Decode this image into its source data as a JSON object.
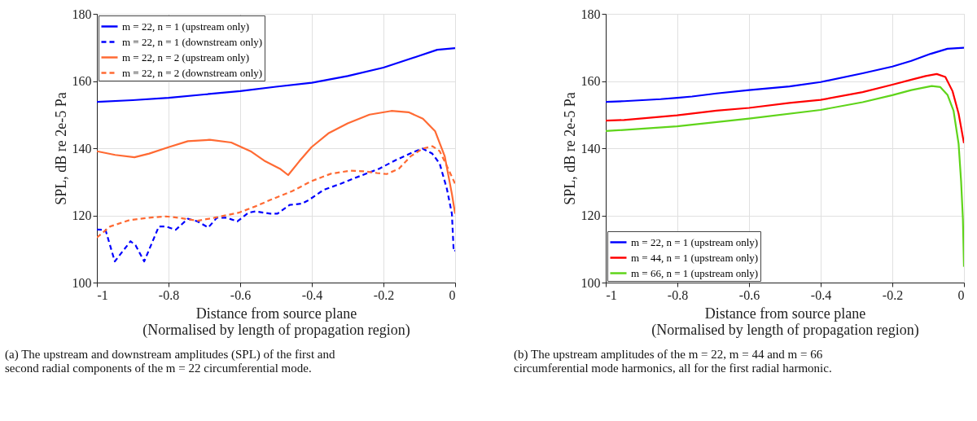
{
  "chart_data": [
    {
      "type": "line",
      "xlabel": "Distance from source plane\n(Normalised by length of propagation region)",
      "ylabel": "SPL, dB re 2e-5 Pa",
      "xlim": [
        -1,
        0
      ],
      "ylim": [
        100,
        180
      ],
      "xticks": [
        -1,
        -0.8,
        -0.6,
        -0.4,
        -0.2,
        0
      ],
      "yticks": [
        100,
        120,
        140,
        160,
        180
      ],
      "grid": true,
      "legend": "top left",
      "annotations": [
        "(a)  The upstream and downstream amplitudes (SPL) of the first and second radial components of the m = 22 circumferential mode."
      ],
      "series": [
        {
          "name": "m = 22, n = 1 (upstream only)",
          "color": "#0000ff",
          "line_style": "solid",
          "x": [
            -1,
            -0.9,
            -0.8,
            -0.7,
            -0.6,
            -0.5,
            -0.4,
            -0.3,
            -0.2,
            -0.1,
            -0.05,
            0
          ],
          "values": [
            153.8,
            154.3,
            155,
            156,
            157,
            158.3,
            159.5,
            161.5,
            164,
            167.5,
            169.3,
            169.8
          ]
        },
        {
          "name": "m = 22, n = 1 (downstream only)",
          "color": "#0000ff",
          "line_style": "dashed",
          "x": [
            -1,
            -0.976,
            -0.95,
            -0.906,
            -0.892,
            -0.868,
            -0.827,
            -0.807,
            -0.78,
            -0.746,
            -0.719,
            -0.689,
            -0.665,
            -0.638,
            -0.608,
            -0.577,
            -0.557,
            -0.516,
            -0.496,
            -0.462,
            -0.428,
            -0.408,
            -0.367,
            -0.32,
            -0.266,
            -0.212,
            -0.165,
            -0.118,
            -0.091,
            -0.064,
            -0.043,
            -0.023,
            -0.009,
            -0.004,
            0
          ],
          "values": [
            115.8,
            115.7,
            106.3,
            112.3,
            111.1,
            106.3,
            116.7,
            116.7,
            115.7,
            119,
            118.2,
            116.4,
            119.3,
            119.3,
            118.2,
            120.8,
            121.2,
            120.5,
            120.5,
            123.1,
            123.5,
            124.6,
            127.6,
            129.4,
            131.7,
            133.9,
            136.5,
            138.8,
            139.9,
            138.4,
            135.4,
            127.9,
            120.5,
            109.3,
            109.5
          ]
        },
        {
          "name": "m = 22, n = 2 (upstream only)",
          "color": "#ff6a33",
          "line_style": "solid",
          "x": [
            -1,
            -0.949,
            -0.895,
            -0.854,
            -0.8,
            -0.746,
            -0.685,
            -0.625,
            -0.571,
            -0.53,
            -0.489,
            -0.466,
            -0.435,
            -0.401,
            -0.354,
            -0.3,
            -0.239,
            -0.178,
            -0.13,
            -0.09,
            -0.056,
            -0.029,
            -0.009,
            0
          ],
          "values": [
            139.1,
            138,
            137.3,
            138.4,
            140.3,
            142.1,
            142.5,
            141.7,
            139.1,
            136.1,
            133.9,
            132,
            136.1,
            140.3,
            144.4,
            147.4,
            150,
            151.1,
            150.7,
            148.8,
            145.1,
            137.6,
            126.4,
            120.5
          ]
        },
        {
          "name": "m = 22, n = 2 (downstream only)",
          "color": "#ff6a33",
          "line_style": "dashed",
          "x": [
            -1,
            -0.963,
            -0.909,
            -0.854,
            -0.807,
            -0.773,
            -0.719,
            -0.672,
            -0.604,
            -0.557,
            -0.516,
            -0.455,
            -0.401,
            -0.347,
            -0.293,
            -0.252,
            -0.218,
            -0.191,
            -0.157,
            -0.124,
            -0.09,
            -0.063,
            -0.043,
            -0.023,
            0
          ],
          "values": [
            113.4,
            116.7,
            118.6,
            119.3,
            119.7,
            119.3,
            118.4,
            119.3,
            120.8,
            122.7,
            124.6,
            127.2,
            130.2,
            132.4,
            133.3,
            133.1,
            132.6,
            132.3,
            133.9,
            137.6,
            139.9,
            140.6,
            139.1,
            134.7,
            129.4
          ]
        }
      ]
    },
    {
      "type": "line",
      "xlabel": "Distance from source plane\n(Normalised by length of propagation region)",
      "ylabel": "SPL, dB re 2e-5 Pa",
      "xlim": [
        -1,
        0
      ],
      "ylim": [
        100,
        180
      ],
      "xticks": [
        -1,
        -0.8,
        -0.6,
        -0.4,
        -0.2,
        0
      ],
      "yticks": [
        100,
        120,
        140,
        160,
        180
      ],
      "grid": true,
      "legend": "bottom left",
      "annotations": [
        "(b)  The upstream amplitudes of the m = 22, m = 44 and m = 66 circumferential mode harmonics, all for the first radial harmonic."
      ],
      "series": [
        {
          "name": "m = 22, n = 1 (upstream only)",
          "color": "#0000ff",
          "line_style": "solid",
          "x": [
            -1,
            -0.949,
            -0.847,
            -0.8,
            -0.759,
            -0.691,
            -0.6,
            -0.487,
            -0.4,
            -0.283,
            -0.2,
            -0.147,
            -0.093,
            -0.046,
            0
          ],
          "values": [
            153.8,
            154,
            154.6,
            155,
            155.4,
            156.3,
            157.3,
            158.4,
            159.7,
            162.3,
            164.3,
            166,
            168.1,
            169.6,
            169.9
          ]
        },
        {
          "name": "m = 44, n = 1 (upstream only)",
          "color": "#ff0000",
          "line_style": "solid",
          "x": [
            -1,
            -0.949,
            -0.801,
            -0.691,
            -0.6,
            -0.487,
            -0.4,
            -0.283,
            -0.2,
            -0.147,
            -0.107,
            -0.076,
            -0.052,
            -0.032,
            -0.015,
            0
          ],
          "values": [
            148.2,
            148.4,
            149.8,
            151.2,
            152,
            153.5,
            154.4,
            156.7,
            158.9,
            160.4,
            161.5,
            162.1,
            161.2,
            157,
            150.3,
            141.5
          ]
        },
        {
          "name": "m = 66, n = 1 (upstream only)",
          "color": "#5fd41a",
          "line_style": "solid",
          "x": [
            -1,
            -0.801,
            -0.6,
            -0.4,
            -0.283,
            -0.2,
            -0.147,
            -0.09,
            -0.066,
            -0.046,
            -0.029,
            -0.015,
            -0.008,
            -0.003,
            0
          ],
          "values": [
            145.1,
            146.5,
            148.8,
            151.4,
            153.7,
            155.8,
            157.3,
            158.5,
            158.2,
            155.9,
            151.1,
            141.3,
            130.1,
            118.9,
            104.7
          ]
        }
      ]
    }
  ]
}
